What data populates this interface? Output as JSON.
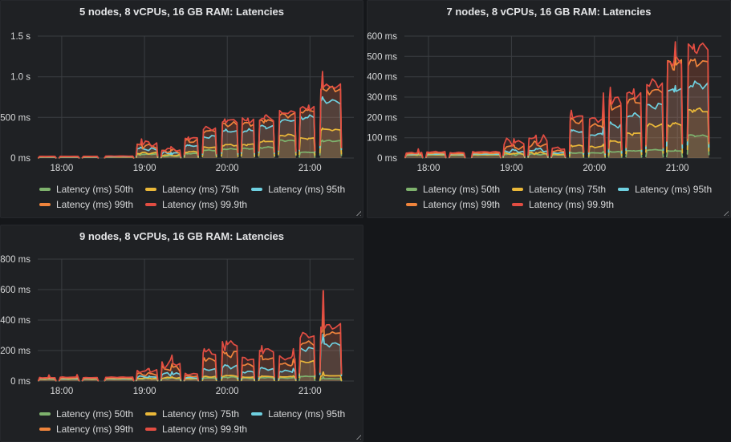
{
  "page": {
    "background": "#15171a",
    "panel_background": "#1f2124",
    "grid_color": "#3a3d41",
    "text_color": "#d8d9da"
  },
  "chart_data": [
    {
      "type": "area",
      "title": "5 nodes, 8 vCPUs, 16 GB RAM: Latencies",
      "x_axis": "time",
      "x_range_hours": [
        17.71,
        21.53
      ],
      "xticks": [
        {
          "h": 18,
          "label": "18:00"
        },
        {
          "h": 19,
          "label": "19:00"
        },
        {
          "h": 20,
          "label": "20:00"
        },
        {
          "h": 21,
          "label": "21:00"
        }
      ],
      "ylim": [
        0,
        1500
      ],
      "yticks": [
        {
          "v": 0,
          "label": "0 ms"
        },
        {
          "v": 500,
          "label": "500 ms"
        },
        {
          "v": 1000,
          "label": "1.0 s"
        },
        {
          "v": 1500,
          "label": "1.5 s"
        }
      ],
      "legend_position": "bottom",
      "series": [
        {
          "name": "Latency (ms) 50th",
          "color": "#7EB26D"
        },
        {
          "name": "Latency (ms) 75th",
          "color": "#EAB839"
        },
        {
          "name": "Latency (ms) 95th",
          "color": "#6ED0E0"
        },
        {
          "name": "Latency (ms) 99th",
          "color": "#EF843C"
        },
        {
          "name": "Latency (ms) 99.9th",
          "color": "#E24D42"
        }
      ],
      "burst_fields": [
        "start_hour",
        "end_hour",
        "p50_ms",
        "p75_ms",
        "p95_ms",
        "p99_ms",
        "p99_9_ms",
        "p99_9_spike_ms",
        "spike_pos_frac",
        "wiggle_amp"
      ],
      "bursts": [
        [
          17.72,
          17.93,
          12,
          14,
          16,
          18,
          20,
          null,
          0,
          0.06
        ],
        [
          17.97,
          18.21,
          12,
          14,
          16,
          18,
          20,
          null,
          0,
          0.06
        ],
        [
          18.25,
          18.44,
          12,
          14,
          16,
          18,
          21,
          null,
          0,
          0.06
        ],
        [
          18.52,
          18.87,
          14,
          16,
          18,
          21,
          24,
          null,
          0,
          0.06
        ],
        [
          18.9,
          19.16,
          45,
          60,
          110,
          150,
          180,
          235,
          0.25,
          0.25
        ],
        [
          19.2,
          19.44,
          25,
          35,
          60,
          85,
          105,
          140,
          0.5,
          0.35
        ],
        [
          19.48,
          19.65,
          55,
          75,
          150,
          210,
          245,
          260,
          0.3,
          0.12
        ],
        [
          19.7,
          19.87,
          95,
          130,
          260,
          330,
          363,
          null,
          0,
          0.08
        ],
        [
          19.93,
          20.13,
          110,
          160,
          330,
          415,
          460,
          480,
          0.2,
          0.08
        ],
        [
          20.17,
          20.33,
          115,
          165,
          335,
          420,
          462,
          490,
          0.5,
          0.08
        ],
        [
          20.38,
          20.57,
          130,
          200,
          380,
          460,
          497,
          520,
          0.4,
          0.08
        ],
        [
          20.62,
          20.83,
          215,
          280,
          460,
          525,
          560,
          null,
          0,
          0.06
        ],
        [
          20.87,
          21.06,
          70,
          240,
          500,
          575,
          610,
          650,
          0.6,
          0.06
        ],
        [
          21.12,
          21.38,
          210,
          350,
          700,
          850,
          880,
          1065,
          0.12,
          0.05
        ]
      ]
    },
    {
      "type": "area",
      "title": "7 nodes, 8 vCPUs, 16 GB RAM: Latencies",
      "x_axis": "time",
      "x_range_hours": [
        17.71,
        21.53
      ],
      "xticks": [
        {
          "h": 18,
          "label": "18:00"
        },
        {
          "h": 19,
          "label": "19:00"
        },
        {
          "h": 20,
          "label": "20:00"
        },
        {
          "h": 21,
          "label": "21:00"
        }
      ],
      "ylim": [
        0,
        600
      ],
      "yticks": [
        {
          "v": 0,
          "label": "0 ms"
        },
        {
          "v": 100,
          "label": "100 ms"
        },
        {
          "v": 200,
          "label": "200 ms"
        },
        {
          "v": 300,
          "label": "300 ms"
        },
        {
          "v": 400,
          "label": "400 ms"
        },
        {
          "v": 500,
          "label": "500 ms"
        },
        {
          "v": 600,
          "label": "600 ms"
        }
      ],
      "legend_position": "bottom",
      "series": [
        {
          "name": "Latency (ms) 50th",
          "color": "#7EB26D"
        },
        {
          "name": "Latency (ms) 75th",
          "color": "#EAB839"
        },
        {
          "name": "Latency (ms) 95th",
          "color": "#6ED0E0"
        },
        {
          "name": "Latency (ms) 99th",
          "color": "#EF843C"
        },
        {
          "name": "Latency (ms) 99.9th",
          "color": "#E24D42"
        }
      ],
      "burst_fields": [
        "start_hour",
        "end_hour",
        "p50_ms",
        "p75_ms",
        "p95_ms",
        "p99_ms",
        "p99_9_ms",
        "p99_9_spike_ms",
        "spike_pos_frac",
        "wiggle_amp"
      ],
      "bursts": [
        [
          17.72,
          17.93,
          14,
          16,
          18,
          21,
          25,
          45,
          0.75,
          0.1
        ],
        [
          17.97,
          18.21,
          15,
          17,
          20,
          24,
          30,
          null,
          0,
          0.1
        ],
        [
          18.25,
          18.44,
          14,
          16,
          18,
          21,
          26,
          null,
          0,
          0.08
        ],
        [
          18.52,
          18.87,
          15,
          17,
          20,
          24,
          30,
          null,
          0,
          0.08
        ],
        [
          18.9,
          19.16,
          18,
          22,
          35,
          55,
          78,
          95,
          0.5,
          0.3
        ],
        [
          19.2,
          19.44,
          18,
          24,
          40,
          65,
          88,
          112,
          0.4,
          0.3
        ],
        [
          19.48,
          19.65,
          15,
          18,
          25,
          35,
          48,
          null,
          0,
          0.15
        ],
        [
          19.7,
          19.87,
          25,
          60,
          130,
          180,
          205,
          235,
          0.12,
          0.08
        ],
        [
          19.93,
          20.13,
          25,
          55,
          115,
          160,
          190,
          320,
          0.9,
          0.08
        ],
        [
          20.17,
          20.33,
          30,
          80,
          160,
          250,
          285,
          348,
          0.08,
          0.08
        ],
        [
          20.38,
          20.57,
          35,
          120,
          210,
          280,
          312,
          340,
          0.5,
          0.07
        ],
        [
          20.62,
          20.83,
          40,
          160,
          255,
          330,
          368,
          null,
          0,
          0.07
        ],
        [
          20.87,
          21.06,
          35,
          165,
          330,
          460,
          478,
          572,
          0.55,
          0.07
        ],
        [
          21.12,
          21.38,
          110,
          235,
          360,
          470,
          540,
          560,
          0.3,
          0.06
        ]
      ]
    },
    {
      "type": "area",
      "title": "9 nodes, 8 vCPUs, 16 GB RAM: Latencies",
      "x_axis": "time",
      "x_range_hours": [
        17.71,
        21.53
      ],
      "xticks": [
        {
          "h": 18,
          "label": "18:00"
        },
        {
          "h": 19,
          "label": "19:00"
        },
        {
          "h": 20,
          "label": "20:00"
        },
        {
          "h": 21,
          "label": "21:00"
        }
      ],
      "ylim": [
        0,
        800
      ],
      "yticks": [
        {
          "v": 0,
          "label": "0 ms"
        },
        {
          "v": 200,
          "label": "200 ms"
        },
        {
          "v": 400,
          "label": "400 ms"
        },
        {
          "v": 600,
          "label": "600 ms"
        },
        {
          "v": 800,
          "label": "800 ms"
        }
      ],
      "legend_position": "bottom",
      "series": [
        {
          "name": "Latency (ms) 50th",
          "color": "#7EB26D"
        },
        {
          "name": "Latency (ms) 75th",
          "color": "#EAB839"
        },
        {
          "name": "Latency (ms) 95th",
          "color": "#6ED0E0"
        },
        {
          "name": "Latency (ms) 99th",
          "color": "#EF843C"
        },
        {
          "name": "Latency (ms) 99.9th",
          "color": "#E24D42"
        }
      ],
      "burst_fields": [
        "start_hour",
        "end_hour",
        "p50_ms",
        "p75_ms",
        "p95_ms",
        "p99_ms",
        "p99_9_ms",
        "p99_9_spike_ms",
        "spike_pos_frac",
        "wiggle_amp"
      ],
      "bursts": [
        [
          17.72,
          17.93,
          12,
          14,
          16,
          18,
          22,
          40,
          0.6,
          0.1
        ],
        [
          17.97,
          18.21,
          12,
          14,
          16,
          19,
          25,
          42,
          0.9,
          0.1
        ],
        [
          18.25,
          18.44,
          12,
          14,
          16,
          18,
          22,
          null,
          0,
          0.08
        ],
        [
          18.52,
          18.87,
          13,
          15,
          17,
          20,
          25,
          null,
          0,
          0.08
        ],
        [
          18.9,
          19.16,
          15,
          18,
          28,
          45,
          65,
          82,
          0.6,
          0.28
        ],
        [
          19.2,
          19.44,
          18,
          22,
          45,
          80,
          112,
          170,
          0.55,
          0.3
        ],
        [
          19.48,
          19.65,
          14,
          16,
          22,
          32,
          46,
          null,
          0,
          0.15
        ],
        [
          19.7,
          19.87,
          20,
          28,
          75,
          140,
          190,
          212,
          0.12,
          0.12
        ],
        [
          19.93,
          20.13,
          25,
          35,
          95,
          175,
          240,
          262,
          0.3,
          0.18
        ],
        [
          20.17,
          20.33,
          18,
          25,
          60,
          105,
          145,
          null,
          0,
          0.12
        ],
        [
          20.38,
          20.57,
          22,
          30,
          80,
          150,
          200,
          232,
          0.2,
          0.12
        ],
        [
          20.62,
          20.83,
          20,
          28,
          65,
          110,
          150,
          212,
          0.85,
          0.12
        ],
        [
          20.87,
          21.06,
          30,
          125,
          210,
          250,
          300,
          null,
          0,
          0.08
        ],
        [
          21.12,
          21.38,
          15,
          35,
          240,
          310,
          355,
          592,
          0.15,
          0.07
        ]
      ]
    }
  ]
}
